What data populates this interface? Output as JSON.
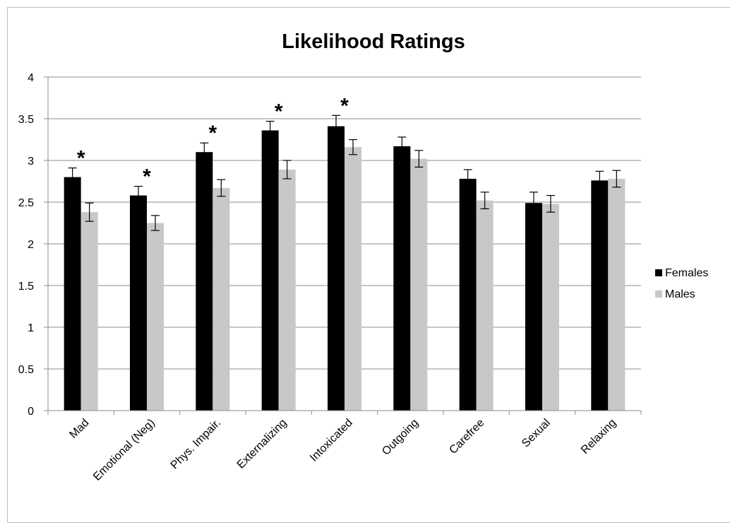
{
  "chart_data": {
    "type": "bar",
    "title": "Likelihood Ratings",
    "xlabel": "",
    "ylabel": "",
    "categories": [
      "Mad",
      "Emotional (Neg)",
      "Phys. Impair.",
      "Externalizing",
      "Intoxicated",
      "Outgoing",
      "Carefree",
      "Sexual",
      "Relaxing"
    ],
    "series": [
      {
        "name": "Females",
        "color": "#000000",
        "values": [
          2.8,
          2.58,
          3.1,
          3.36,
          3.41,
          3.17,
          2.78,
          2.49,
          2.76
        ],
        "errors": [
          0.11,
          0.11,
          0.11,
          0.11,
          0.13,
          0.11,
          0.11,
          0.13,
          0.11
        ]
      },
      {
        "name": "Males",
        "color": "#c8c8c8",
        "values": [
          2.38,
          2.25,
          2.67,
          2.89,
          3.16,
          3.02,
          2.52,
          2.48,
          2.78
        ],
        "errors": [
          0.11,
          0.09,
          0.1,
          0.11,
          0.09,
          0.1,
          0.1,
          0.1,
          0.1
        ]
      }
    ],
    "annotations": [
      {
        "category": "Mad",
        "text": "*"
      },
      {
        "category": "Emotional (Neg)",
        "text": "*"
      },
      {
        "category": "Phys. Impair.",
        "text": "*"
      },
      {
        "category": "Externalizing",
        "text": "*"
      },
      {
        "category": "Intoxicated",
        "text": "*"
      }
    ],
    "ylim": [
      0,
      4
    ],
    "yticks": [
      "0",
      "0.5",
      "1",
      "1.5",
      "2",
      "2.5",
      "3",
      "3.5",
      "4"
    ],
    "grid": true,
    "legend_position": "right"
  }
}
